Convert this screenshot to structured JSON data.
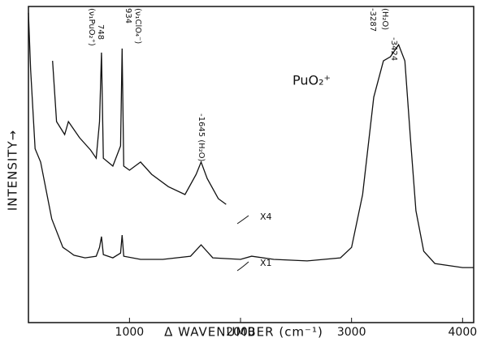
{
  "chart_data": {
    "type": "line",
    "title": "PuO₂⁺",
    "x_label": "Δ WAVENUMBER (cm⁻¹)",
    "y_label": "INTENSITY→",
    "xlim": [
      90,
      4100
    ],
    "ylim": [
      0,
      100
    ],
    "xticks": [
      1000,
      2000,
      3000,
      4000
    ],
    "series": [
      {
        "name": "X1",
        "color": "#111111",
        "x": [
          90,
          110,
          150,
          200,
          300,
          400,
          450,
          500,
          600,
          700,
          730,
          748,
          765,
          850,
          920,
          934,
          948,
          1100,
          1300,
          1550,
          1645,
          1750,
          2000,
          2100,
          2300,
          2600,
          2900,
          3000,
          3100,
          3200,
          3287,
          3350,
          3424,
          3480,
          3530,
          3580,
          3650,
          3750,
          4000,
          4100
        ],
        "values": [
          98,
          80,
          55,
          50.8,
          32.8,
          23.8,
          22.6,
          21.3,
          20.5,
          21,
          23.8,
          27.2,
          21.5,
          20.5,
          22,
          27.7,
          21,
          20,
          20,
          21,
          24.6,
          20.5,
          20,
          21,
          20,
          19.5,
          20.5,
          23.8,
          40.5,
          71.3,
          82.8,
          84.1,
          87.9,
          82.8,
          58.5,
          35.4,
          22.6,
          18.7,
          17.4,
          17.4
        ]
      },
      {
        "name": "X4",
        "color": "#111111",
        "x": [
          307,
          343,
          416,
          450,
          550,
          650,
          700,
          730,
          748,
          765,
          850,
          920,
          934,
          948,
          1000,
          1100,
          1200,
          1350,
          1500,
          1600,
          1645,
          1700,
          1800,
          1870
        ],
        "values": [
          82.8,
          63.6,
          59.5,
          63.6,
          58.5,
          54.6,
          52,
          63.6,
          85.4,
          52,
          49.5,
          55.9,
          86.7,
          49.5,
          48.2,
          50.8,
          46.9,
          43,
          40.5,
          46.9,
          50.8,
          45.6,
          39.2,
          37.4
        ]
      }
    ],
    "annotations": [
      {
        "text": "(ν₁PuO₂⁺)"
      },
      {
        "text": "748"
      },
      {
        "text": "934"
      },
      {
        "text": "(ν₁ClO₄⁻)"
      },
      {
        "text": "-1645 (H₂O)"
      },
      {
        "text": "-3287"
      },
      {
        "text": "(H₂O)"
      },
      {
        "text": "-3424"
      }
    ]
  }
}
